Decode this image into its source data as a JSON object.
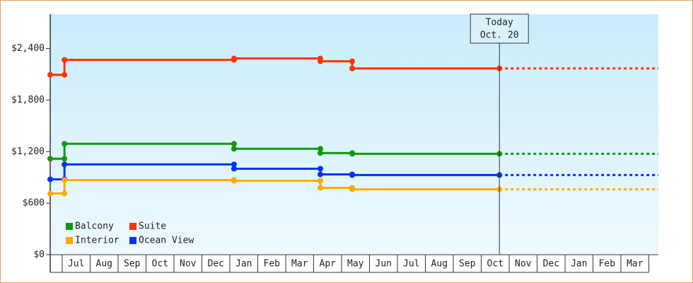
{
  "chart_data": {
    "type": "step-line",
    "x": [
      -0.43,
      0.08,
      0.08,
      6.15,
      6.15,
      9.24,
      9.24,
      10.38,
      10.38,
      15.65
    ],
    "series": [
      {
        "name": "Suite",
        "color": "#ff3300",
        "values": [
          2094,
          2094,
          2268,
          2268,
          2284,
          2284,
          2251,
          2251,
          2168,
          2168
        ]
      },
      {
        "name": "Balcony",
        "color": "#119911",
        "values": [
          1117,
          1117,
          1291,
          1291,
          1233,
          1233,
          1183,
          1183,
          1175,
          1175
        ]
      },
      {
        "name": "Ocean View",
        "color": "#0033ff",
        "values": [
          877,
          877,
          1051,
          1051,
          1001,
          1001,
          935,
          935,
          927,
          927
        ]
      },
      {
        "name": "Interior",
        "color": "#ffaa00",
        "values": [
          712,
          712,
          869,
          869,
          861,
          861,
          778,
          778,
          761,
          761
        ]
      }
    ],
    "legend_order": [
      1,
      0,
      3,
      2
    ],
    "legend": "lower left",
    "projection": true,
    "xlim": [
      -0.43,
      21.34
    ],
    "xticks": [
      0,
      1,
      2,
      3,
      4,
      5,
      6,
      7,
      8,
      9,
      10,
      11,
      12,
      13,
      14,
      15,
      16,
      17,
      18,
      19,
      20,
      21
    ],
    "month_labels": [
      "Jul",
      "Aug",
      "Sep",
      "Oct",
      "Nov",
      "Dec",
      "Jan",
      "Feb",
      "Mar",
      "Apr",
      "May",
      "Jun",
      "Jul",
      "Aug",
      "Sep",
      "Oct",
      "Nov",
      "Dec",
      "Jan",
      "Feb",
      "Mar"
    ],
    "ylim": [
      0,
      2800
    ],
    "yticks": [
      {
        "value": 0,
        "label": "$0"
      },
      {
        "value": 600,
        "label": "$600"
      },
      {
        "value": 1200,
        "label": "$1,200"
      },
      {
        "value": 1800,
        "label": "$1,800"
      },
      {
        "value": 2400,
        "label": "$2,400"
      }
    ],
    "annotation": {
      "x": 15.65,
      "lines": [
        "Today",
        "Oct. 20"
      ]
    }
  }
}
